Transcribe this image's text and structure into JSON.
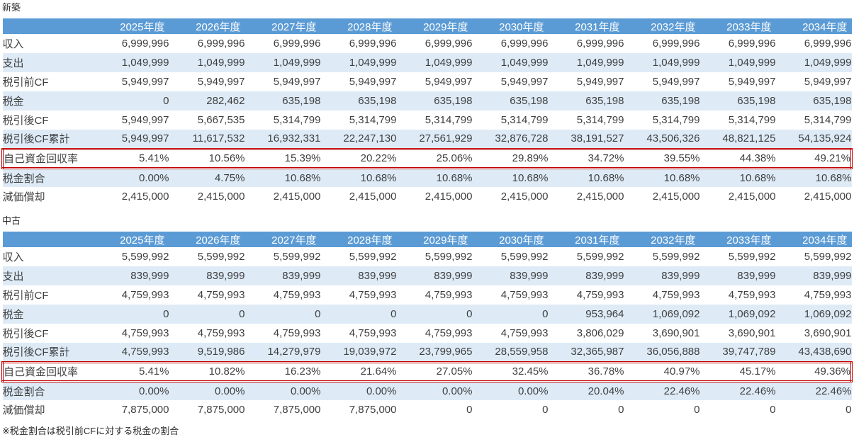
{
  "colors": {
    "header_bg": "#5b9bd5",
    "band_bg": "#deebf7",
    "highlight_border": "#c00000",
    "header_text": "#ffffff",
    "text_color": "#3f3f3f"
  },
  "page": {
    "footnote": "※税金割合は税引前CFに対する税金の割合"
  },
  "tables": [
    {
      "title": "新築",
      "columns": [
        "2025年度",
        "2026年度",
        "2027年度",
        "2028年度",
        "2029年度",
        "2030年度",
        "2031年度",
        "2032年度",
        "2033年度",
        "2034年度"
      ],
      "rows": [
        {
          "label": "収入",
          "values": [
            "6,999,996",
            "6,999,996",
            "6,999,996",
            "6,999,996",
            "6,999,996",
            "6,999,996",
            "6,999,996",
            "6,999,996",
            "6,999,996",
            "6,999,996"
          ]
        },
        {
          "label": "支出",
          "values": [
            "1,049,999",
            "1,049,999",
            "1,049,999",
            "1,049,999",
            "1,049,999",
            "1,049,999",
            "1,049,999",
            "1,049,999",
            "1,049,999",
            "1,049,999"
          ]
        },
        {
          "label": "税引前CF",
          "values": [
            "5,949,997",
            "5,949,997",
            "5,949,997",
            "5,949,997",
            "5,949,997",
            "5,949,997",
            "5,949,997",
            "5,949,997",
            "5,949,997",
            "5,949,997"
          ]
        },
        {
          "label": "税金",
          "values": [
            "0",
            "282,462",
            "635,198",
            "635,198",
            "635,198",
            "635,198",
            "635,198",
            "635,198",
            "635,198",
            "635,198"
          ]
        },
        {
          "label": "税引後CF",
          "values": [
            "5,949,997",
            "5,667,535",
            "5,314,799",
            "5,314,799",
            "5,314,799",
            "5,314,799",
            "5,314,799",
            "5,314,799",
            "5,314,799",
            "5,314,799"
          ]
        },
        {
          "label": "税引後CF累計",
          "values": [
            "5,949,997",
            "11,617,532",
            "16,932,331",
            "22,247,130",
            "27,561,929",
            "32,876,728",
            "38,191,527",
            "43,506,326",
            "48,821,125",
            "54,135,924"
          ]
        },
        {
          "label": "自己資金回収率",
          "highlight": true,
          "values": [
            "5.41%",
            "10.56%",
            "15.39%",
            "20.22%",
            "25.06%",
            "29.89%",
            "34.72%",
            "39.55%",
            "44.38%",
            "49.21%"
          ]
        },
        {
          "label": "税金割合",
          "values": [
            "0.00%",
            "4.75%",
            "10.68%",
            "10.68%",
            "10.68%",
            "10.68%",
            "10.68%",
            "10.68%",
            "10.68%",
            "10.68%"
          ]
        },
        {
          "label": "減価償却",
          "values": [
            "2,415,000",
            "2,415,000",
            "2,415,000",
            "2,415,000",
            "2,415,000",
            "2,415,000",
            "2,415,000",
            "2,415,000",
            "2,415,000",
            "2,415,000"
          ]
        }
      ]
    },
    {
      "title": "中古",
      "columns": [
        "2025年度",
        "2026年度",
        "2027年度",
        "2028年度",
        "2029年度",
        "2030年度",
        "2031年度",
        "2032年度",
        "2033年度",
        "2034年度"
      ],
      "rows": [
        {
          "label": "収入",
          "values": [
            "5,599,992",
            "5,599,992",
            "5,599,992",
            "5,599,992",
            "5,599,992",
            "5,599,992",
            "5,599,992",
            "5,599,992",
            "5,599,992",
            "5,599,992"
          ]
        },
        {
          "label": "支出",
          "values": [
            "839,999",
            "839,999",
            "839,999",
            "839,999",
            "839,999",
            "839,999",
            "839,999",
            "839,999",
            "839,999",
            "839,999"
          ]
        },
        {
          "label": "税引前CF",
          "values": [
            "4,759,993",
            "4,759,993",
            "4,759,993",
            "4,759,993",
            "4,759,993",
            "4,759,993",
            "4,759,993",
            "4,759,993",
            "4,759,993",
            "4,759,993"
          ]
        },
        {
          "label": "税金",
          "values": [
            "0",
            "0",
            "0",
            "0",
            "0",
            "0",
            "953,964",
            "1,069,092",
            "1,069,092",
            "1,069,092"
          ]
        },
        {
          "label": "税引後CF",
          "values": [
            "4,759,993",
            "4,759,993",
            "4,759,993",
            "4,759,993",
            "4,759,993",
            "4,759,993",
            "3,806,029",
            "3,690,901",
            "3,690,901",
            "3,690,901"
          ]
        },
        {
          "label": "税引後CF累計",
          "values": [
            "4,759,993",
            "9,519,986",
            "14,279,979",
            "19,039,972",
            "23,799,965",
            "28,559,958",
            "32,365,987",
            "36,056,888",
            "39,747,789",
            "43,438,690"
          ]
        },
        {
          "label": "自己資金回収率",
          "highlight": true,
          "values": [
            "5.41%",
            "10.82%",
            "16.23%",
            "21.64%",
            "27.05%",
            "32.45%",
            "36.78%",
            "40.97%",
            "45.17%",
            "49.36%"
          ]
        },
        {
          "label": "税金割合",
          "values": [
            "0.00%",
            "0.00%",
            "0.00%",
            "0.00%",
            "0.00%",
            "0.00%",
            "20.04%",
            "22.46%",
            "22.46%",
            "22.46%"
          ]
        },
        {
          "label": "減価償却",
          "values": [
            "7,875,000",
            "7,875,000",
            "7,875,000",
            "7,875,000",
            "0",
            "0",
            "0",
            "0",
            "0",
            "0"
          ]
        }
      ]
    }
  ]
}
